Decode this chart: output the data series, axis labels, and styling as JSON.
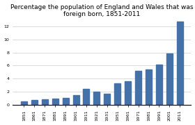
{
  "title": "Percentage the population of England and Wales that was\nforeign born, 1851-2011",
  "categories": [
    "1851",
    "1861",
    "1871",
    "1881",
    "1891",
    "1901",
    "1911",
    "1921",
    "1931",
    "1951",
    "1961",
    "1971",
    "1981",
    "1991",
    "2001",
    "2011"
  ],
  "values": [
    0.5,
    0.8,
    0.9,
    1.0,
    1.1,
    1.5,
    2.45,
    2.05,
    1.75,
    3.3,
    3.6,
    5.2,
    5.4,
    6.2,
    7.9,
    12.7
  ],
  "bar_color": "#4472a8",
  "background_color": "#ffffff",
  "ylim": [
    0,
    13
  ],
  "yticks": [
    0,
    2,
    4,
    6,
    8,
    10,
    12
  ],
  "title_fontsize": 6.5,
  "tick_fontsize": 4.5,
  "grid_color": "#cccccc"
}
